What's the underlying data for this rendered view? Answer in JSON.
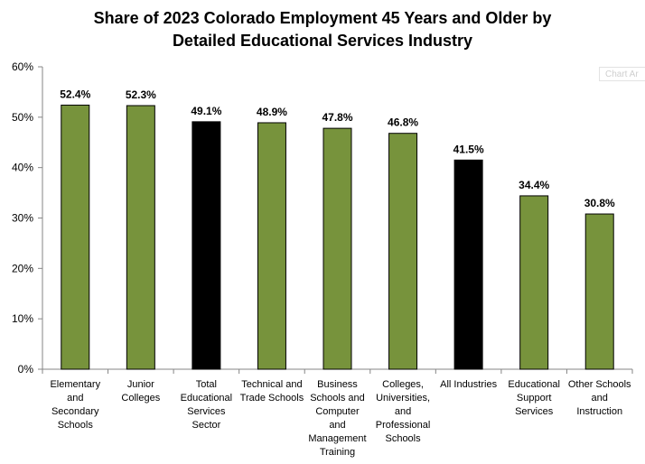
{
  "chart_data": {
    "type": "bar",
    "title": [
      "Share of 2023 Colorado Employment 45 Years and Older by",
      "Detailed Educational Services Industry"
    ],
    "categories": [
      [
        "Elementary",
        "and",
        "Secondary",
        "Schools"
      ],
      [
        "Junior",
        "Colleges"
      ],
      [
        "Total",
        "Educational",
        "Services",
        "Sector"
      ],
      [
        "Technical and",
        "Trade Schools"
      ],
      [
        "Business",
        "Schools and",
        "Computer",
        "and",
        "Management",
        "Training"
      ],
      [
        "Colleges,",
        "Universities,",
        "and",
        "Professional",
        "Schools"
      ],
      [
        "All Industries"
      ],
      [
        "Educational",
        "Support",
        "Services"
      ],
      [
        "Other Schools",
        "and",
        "Instruction"
      ]
    ],
    "values": [
      52.4,
      52.3,
      49.1,
      48.9,
      47.8,
      46.8,
      41.5,
      34.4,
      30.8
    ],
    "data_labels": [
      "52.4%",
      "52.3%",
      "49.1%",
      "48.9%",
      "47.8%",
      "46.8%",
      "41.5%",
      "34.4%",
      "30.8%"
    ],
    "bar_colors": [
      "#77933c",
      "#77933c",
      "#000000",
      "#77933c",
      "#77933c",
      "#77933c",
      "#000000",
      "#77933c",
      "#77933c"
    ],
    "ylim": [
      0,
      60
    ],
    "yticks": [
      0,
      10,
      20,
      30,
      40,
      50,
      60
    ],
    "ytick_labels": [
      "0%",
      "10%",
      "20%",
      "30%",
      "40%",
      "50%",
      "60%"
    ],
    "xlabel": "",
    "ylabel": "",
    "grid": false
  },
  "chart_area_tag": "Chart Ar"
}
